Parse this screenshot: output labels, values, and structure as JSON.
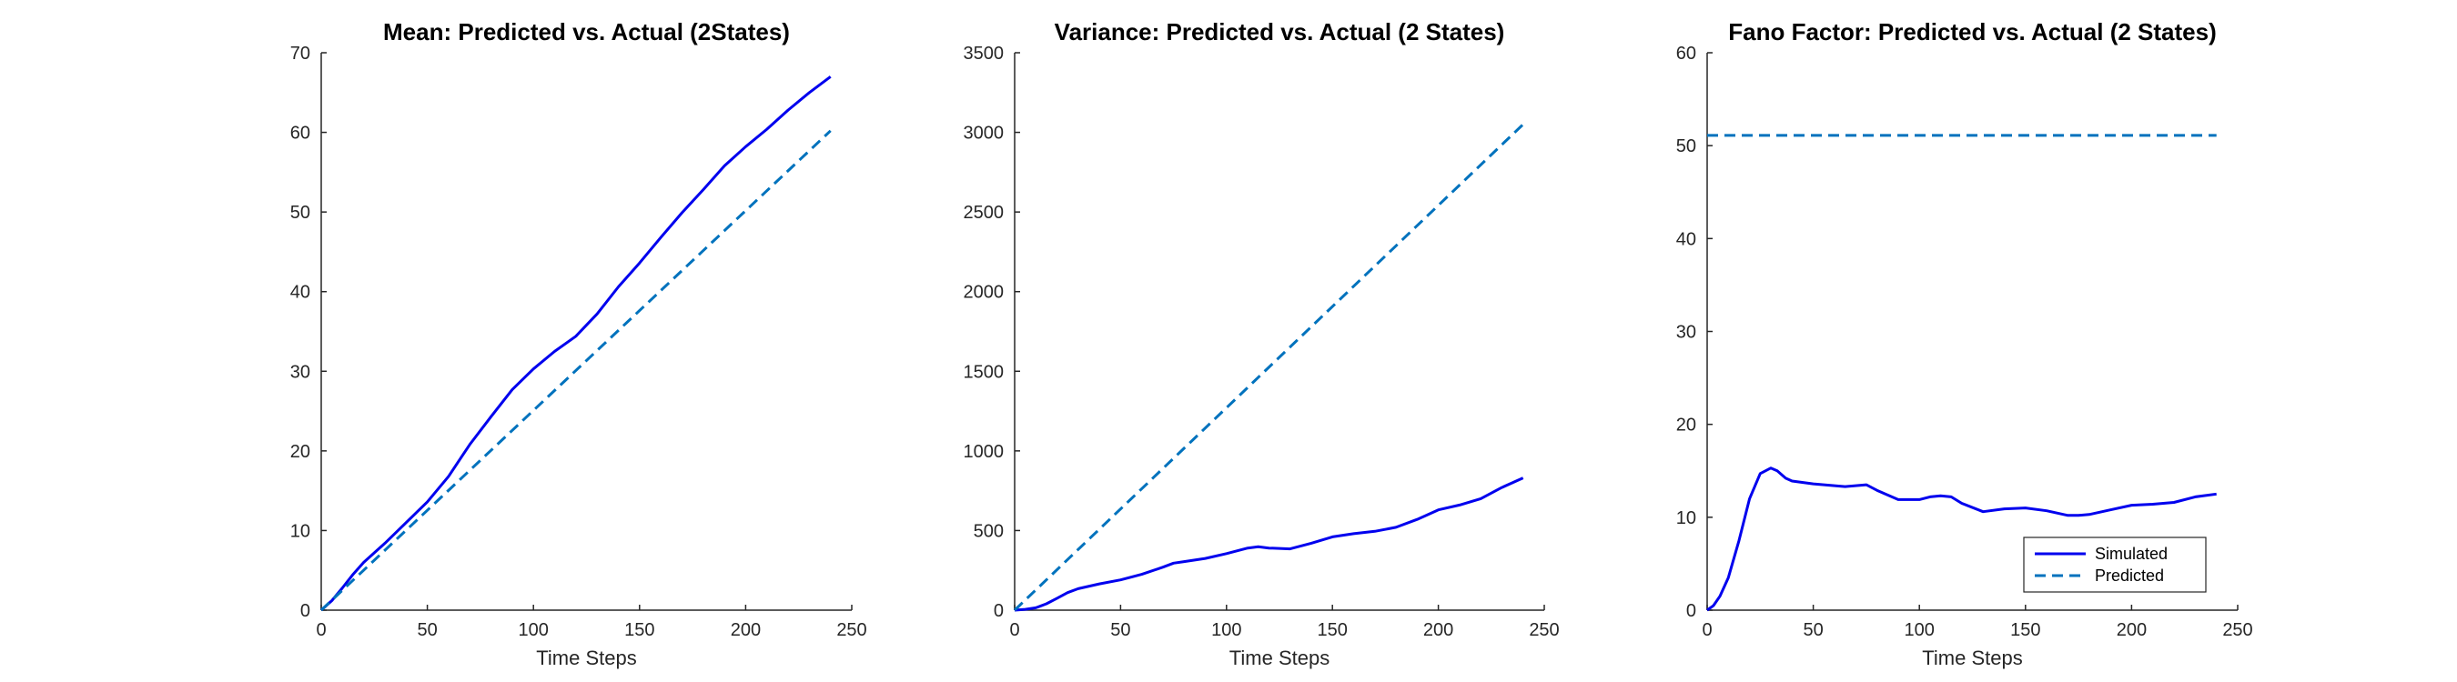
{
  "colors": {
    "simulated": "#0000ee",
    "predicted": "#0072bd",
    "axis": "#262626"
  },
  "chart_data": [
    {
      "type": "line",
      "title": "Mean: Predicted vs. Actual (2States)",
      "xlabel": "Time Steps",
      "ylabel": "",
      "xlim": [
        0,
        250
      ],
      "ylim": [
        0,
        70
      ],
      "xticks": [
        0,
        50,
        100,
        150,
        200,
        250
      ],
      "yticks": [
        0,
        10,
        20,
        30,
        40,
        50,
        60,
        70
      ],
      "grid": false,
      "legend": null,
      "series": [
        {
          "style": "solid",
          "color": "#0000ee",
          "x": [
            0,
            5,
            10,
            15,
            20,
            30,
            40,
            50,
            60,
            70,
            80,
            90,
            100,
            110,
            120,
            130,
            140,
            150,
            160,
            170,
            180,
            190,
            200,
            210,
            220,
            230,
            240
          ],
          "y": [
            0,
            1.2,
            2.8,
            4.5,
            6.0,
            8.4,
            11.0,
            13.6,
            16.8,
            20.8,
            24.3,
            27.7,
            30.3,
            32.5,
            34.4,
            37.2,
            40.6,
            43.6,
            46.8,
            49.9,
            52.8,
            55.8,
            58.2,
            60.4,
            62.8,
            65.0,
            67.0
          ]
        },
        {
          "style": "dashed",
          "color": "#0072bd",
          "x": [
            0,
            240
          ],
          "y": [
            0,
            60.2
          ]
        }
      ]
    },
    {
      "type": "line",
      "title": "Variance: Predicted vs. Actual (2 States)",
      "xlabel": "Time Steps",
      "ylabel": "",
      "xlim": [
        0,
        250
      ],
      "ylim": [
        0,
        3500
      ],
      "xticks": [
        0,
        50,
        100,
        150,
        200,
        250
      ],
      "yticks": [
        0,
        500,
        1000,
        1500,
        2000,
        2500,
        3000,
        3500
      ],
      "grid": false,
      "legend": null,
      "series": [
        {
          "style": "solid",
          "color": "#0000ee",
          "x": [
            0,
            5,
            10,
            15,
            20,
            25,
            30,
            40,
            50,
            60,
            70,
            75,
            80,
            90,
            100,
            110,
            115,
            120,
            130,
            140,
            150,
            160,
            170,
            180,
            190,
            200,
            210,
            220,
            230,
            240
          ],
          "y": [
            0,
            5,
            15,
            40,
            75,
            110,
            135,
            165,
            190,
            225,
            270,
            295,
            305,
            325,
            355,
            390,
            398,
            390,
            385,
            420,
            460,
            480,
            495,
            520,
            570,
            630,
            660,
            700,
            770,
            830
          ]
        },
        {
          "style": "dashed",
          "color": "#0072bd",
          "x": [
            0,
            240
          ],
          "y": [
            0,
            3050
          ]
        }
      ]
    },
    {
      "type": "line",
      "title": "Fano Factor: Predicted vs. Actual (2 States)",
      "xlabel": "Time Steps",
      "ylabel": "",
      "xlim": [
        0,
        250
      ],
      "ylim": [
        0,
        60
      ],
      "xticks": [
        0,
        50,
        100,
        150,
        200,
        250
      ],
      "yticks": [
        0,
        10,
        20,
        30,
        40,
        50,
        60
      ],
      "grid": false,
      "legend": {
        "position": "bottom-right",
        "entries": [
          "Simulated",
          "Predicted"
        ]
      },
      "series": [
        {
          "name": "Simulated",
          "style": "solid",
          "color": "#0000ee",
          "x": [
            0,
            3,
            6,
            10,
            15,
            20,
            25,
            30,
            33,
            37,
            40,
            50,
            60,
            65,
            70,
            75,
            80,
            90,
            100,
            105,
            110,
            115,
            120,
            130,
            140,
            150,
            160,
            170,
            175,
            180,
            190,
            200,
            210,
            220,
            230,
            240
          ],
          "y": [
            0,
            0.5,
            1.5,
            3.5,
            7.5,
            12.0,
            14.7,
            15.3,
            15.0,
            14.2,
            13.9,
            13.6,
            13.4,
            13.3,
            13.4,
            13.5,
            12.9,
            11.9,
            11.9,
            12.2,
            12.3,
            12.2,
            11.5,
            10.6,
            10.9,
            11.0,
            10.7,
            10.2,
            10.2,
            10.3,
            10.8,
            11.3,
            11.4,
            11.6,
            12.2,
            12.5
          ]
        },
        {
          "name": "Predicted",
          "style": "dashed",
          "color": "#0072bd",
          "x": [
            0,
            240
          ],
          "y": [
            51.1,
            51.1
          ]
        }
      ]
    }
  ]
}
